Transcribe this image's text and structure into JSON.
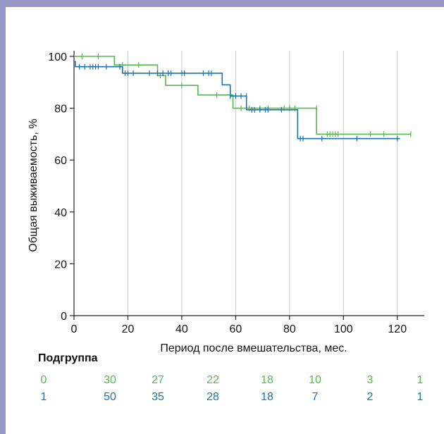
{
  "chart_data": {
    "type": "line",
    "title": "",
    "xlabel": "Период после вмешательства, мес.",
    "ylabel": "Общая выживаемость, %",
    "xlim": [
      0,
      130
    ],
    "ylim": [
      0,
      100
    ],
    "x_ticks": [
      0,
      20,
      40,
      60,
      80,
      100,
      120
    ],
    "y_ticks": [
      0,
      20,
      40,
      60,
      80,
      100
    ],
    "x_tick_labels": [
      "0",
      "20",
      "40",
      "60",
      "80",
      "100",
      "120"
    ],
    "y_tick_labels": [
      "0",
      "20",
      "40",
      "60",
      "80",
      "100"
    ],
    "grid": "vertical",
    "series": [
      {
        "name": "0",
        "color": "#55b94f",
        "steps": [
          [
            0,
            100
          ],
          [
            15,
            96.7
          ],
          [
            31,
            92.6
          ],
          [
            34,
            88.8
          ],
          [
            46,
            85.1
          ],
          [
            59,
            80.0
          ],
          [
            90,
            70.0
          ],
          [
            125,
            70.0
          ]
        ],
        "censored": [
          [
            3,
            100
          ],
          [
            9,
            100
          ],
          [
            18,
            96.7
          ],
          [
            24,
            96.7
          ],
          [
            32,
            92.6
          ],
          [
            40,
            88.8
          ],
          [
            53,
            85.1
          ],
          [
            58,
            85.1
          ],
          [
            62,
            80.0
          ],
          [
            65,
            80.0
          ],
          [
            69,
            80.0
          ],
          [
            72,
            80.0
          ],
          [
            78,
            80.0
          ],
          [
            80,
            80.0
          ],
          [
            82,
            80.0
          ],
          [
            90,
            80.0
          ],
          [
            94,
            70.0
          ],
          [
            95,
            70.0
          ],
          [
            96,
            70.0
          ],
          [
            97,
            70.0
          ],
          [
            98,
            70.0
          ],
          [
            110,
            70.0
          ],
          [
            115,
            70.0
          ],
          [
            125,
            70.0
          ]
        ]
      },
      {
        "name": "1",
        "color": "#1a73b3",
        "steps": [
          [
            0,
            98
          ],
          [
            0.5,
            96.0
          ],
          [
            18,
            93.5
          ],
          [
            55,
            89.0
          ],
          [
            58,
            84.7
          ],
          [
            64,
            79.4
          ],
          [
            83,
            68.3
          ],
          [
            121,
            68.3
          ]
        ],
        "censored": [
          [
            2,
            96.0
          ],
          [
            4,
            96.0
          ],
          [
            6,
            96.0
          ],
          [
            7,
            96.0
          ],
          [
            8,
            96.0
          ],
          [
            9,
            96.0
          ],
          [
            12,
            96.0
          ],
          [
            17,
            96.0
          ],
          [
            19,
            93.5
          ],
          [
            20,
            93.5
          ],
          [
            22,
            93.5
          ],
          [
            28,
            93.5
          ],
          [
            31,
            93.5
          ],
          [
            33,
            93.5
          ],
          [
            35,
            93.5
          ],
          [
            36,
            93.5
          ],
          [
            40,
            93.5
          ],
          [
            41,
            93.5
          ],
          [
            48,
            93.5
          ],
          [
            50,
            93.5
          ],
          [
            51,
            93.5
          ],
          [
            58,
            84.7
          ],
          [
            60,
            84.7
          ],
          [
            62,
            84.7
          ],
          [
            64,
            84.7
          ],
          [
            66,
            79.4
          ],
          [
            67,
            79.4
          ],
          [
            69,
            79.4
          ],
          [
            71,
            79.4
          ],
          [
            72,
            79.4
          ],
          [
            77,
            79.4
          ],
          [
            84,
            68.3
          ],
          [
            85,
            68.3
          ],
          [
            92,
            68.3
          ],
          [
            105,
            68.3
          ],
          [
            120,
            68.3
          ]
        ]
      }
    ],
    "risk_table": {
      "title": "Подгруппа",
      "rows": [
        {
          "label": "0",
          "color": "#55b94f",
          "values": [
            "30",
            "27",
            "22",
            "18",
            "10",
            "3",
            "1"
          ]
        },
        {
          "label": "1",
          "color": "#1a73b3",
          "values": [
            "50",
            "35",
            "28",
            "18",
            "7",
            "2",
            "1"
          ]
        }
      ]
    }
  }
}
